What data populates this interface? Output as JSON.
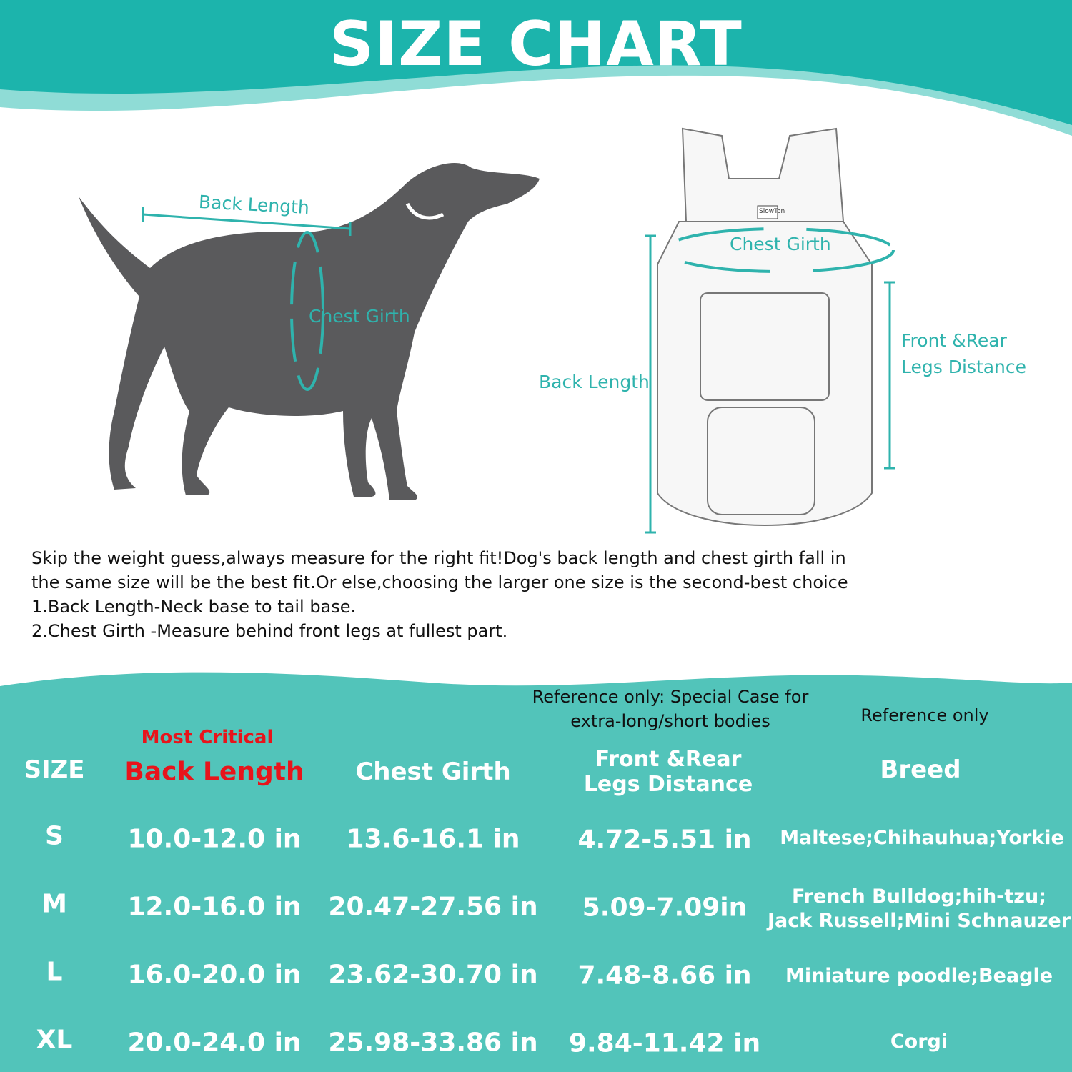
{
  "title": "SIZE CHART",
  "dog_labels": {
    "back_length": "Back Length",
    "chest_girth": "Chest Girth"
  },
  "carrier_labels": {
    "logo": "SlowTon",
    "chest_girth": "Chest Girth",
    "back_length": "Back Length",
    "legs_distance_line1": "Front &Rear",
    "legs_distance_line2": "Legs Distance"
  },
  "instructions": [
    "Skip the weight guess,always measure for the right fit!Dog's back length and chest girth fall in",
    "the same size will be the best fit.Or else,choosing the larger one size is the second-best choice",
    "1.Back Length-Neck base to tail base.",
    "2.Chest Girth -Measure behind front legs at fullest part."
  ],
  "colors": {
    "header_teal": "#1cb4ac",
    "table_teal": "#52c4ba",
    "critical_red": "#e8141b"
  },
  "table": {
    "notes": {
      "legs": [
        "Reference only: Special Case for",
        "extra-long/short bodies"
      ],
      "breed": "Reference only",
      "back_length": "Most Critical"
    },
    "headers": {
      "size": "SIZE",
      "back_length": "Back Length",
      "chest_girth": "Chest Girth",
      "legs_line1": "Front &Rear",
      "legs_line2": "Legs Distance",
      "breed": "Breed"
    },
    "rows": [
      {
        "size": "S",
        "back_length": "10.0-12.0 in",
        "chest_girth": "13.6-16.1 in",
        "legs": "4.72-5.51 in",
        "breed": [
          "Maltese;Chihauhua;Yorkie"
        ]
      },
      {
        "size": "M",
        "back_length": "12.0-16.0 in",
        "chest_girth": "20.47-27.56 in",
        "legs": "5.09-7.09in",
        "breed": [
          "French Bulldog;hih-tzu;",
          "Jack Russell;Mini Schnauzer"
        ]
      },
      {
        "size": "L",
        "back_length": "16.0-20.0 in",
        "chest_girth": "23.62-30.70 in",
        "legs": "7.48-8.66 in",
        "breed": [
          "Miniature poodle;Beagle"
        ]
      },
      {
        "size": "XL",
        "back_length": "20.0-24.0 in",
        "chest_girth": "25.98-33.86 in",
        "legs": "9.84-11.42 in",
        "breed": [
          "Corgi"
        ]
      }
    ]
  }
}
